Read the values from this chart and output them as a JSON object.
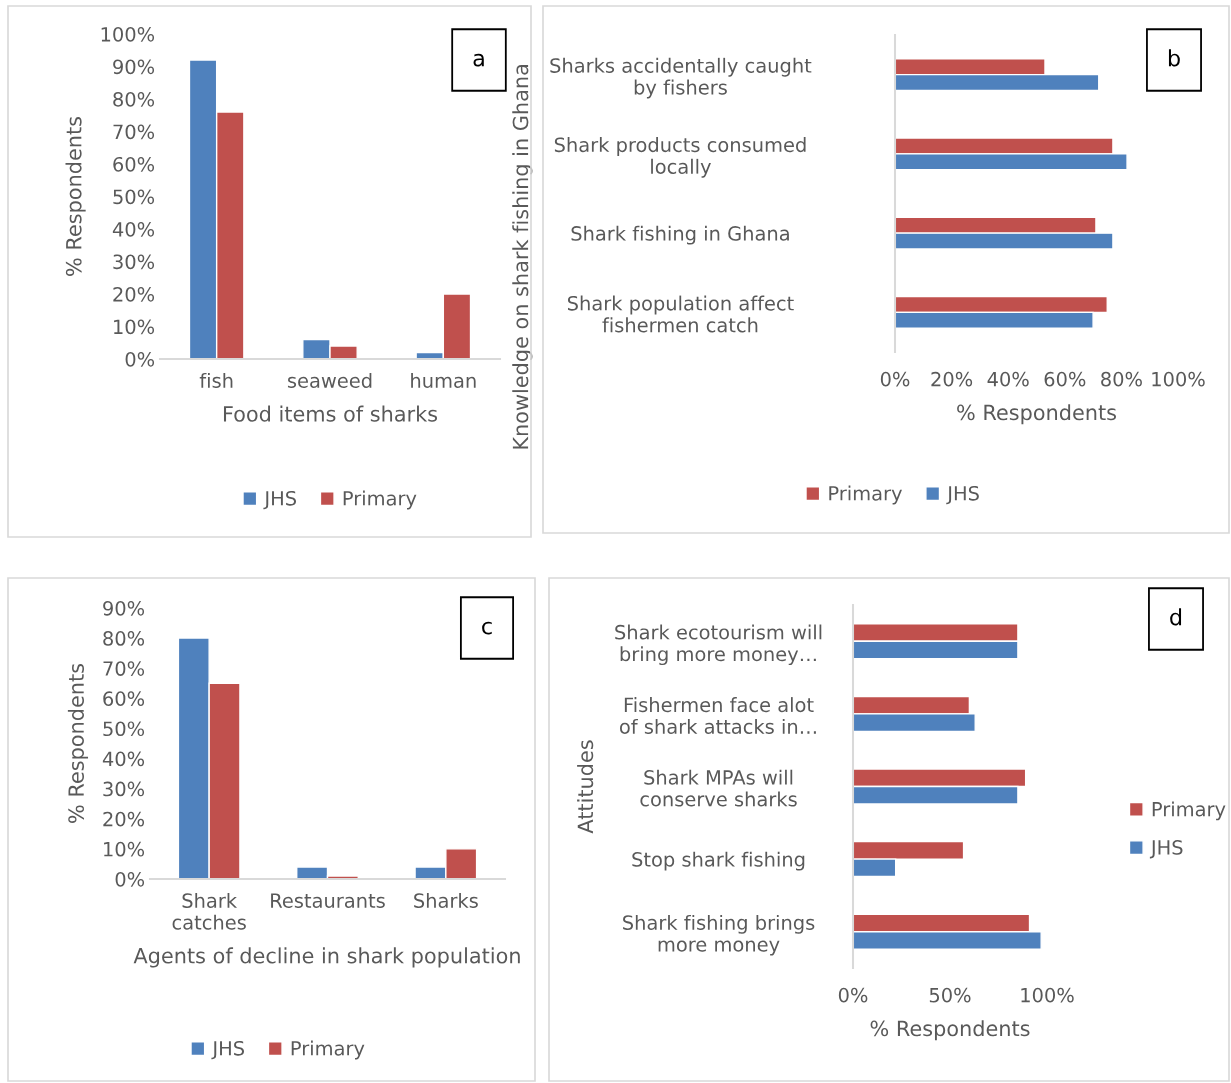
{
  "chart_data": [
    {
      "type": "bar",
      "categories": [
        "fish",
        "seaweed",
        "human"
      ],
      "xlabel": "Food items of sharks",
      "ylabel": "% Respondents",
      "ylim": [
        0,
        100
      ],
      "yticks": [
        {
          "value": 0,
          "label": "0%"
        },
        {
          "value": 10,
          "label": "10%"
        },
        {
          "value": 20,
          "label": "20%"
        },
        {
          "value": 30,
          "label": "30%"
        },
        {
          "value": 40,
          "label": "40%"
        },
        {
          "value": 50,
          "label": "50%"
        },
        {
          "value": 60,
          "label": "60%"
        },
        {
          "value": 70,
          "label": "70%"
        },
        {
          "value": 80,
          "label": "80%"
        },
        {
          "value": 90,
          "label": "90%"
        },
        {
          "value": 100,
          "label": "100%"
        }
      ],
      "annotations": [
        "a"
      ],
      "legend": "bottom",
      "grid": false,
      "series": [
        {
          "name": "JHS",
          "color": "#4f81bd",
          "values": [
            92,
            6,
            2
          ]
        },
        {
          "name": "Primary",
          "color": "#c0504d",
          "values": [
            76,
            4,
            20
          ]
        }
      ]
    },
    {
      "type": "bar",
      "orientation": "horizontal",
      "categories": [
        "Sharks accidentally caught\nby fishers",
        "Shark products consumed\nlocally",
        "Shark fishing in Ghana",
        "Shark population affect\nfishermen catch"
      ],
      "xlabel": "% Respondents",
      "ylabel": "Knowledge on shark fishing in Ghana",
      "xlim": [
        0,
        100
      ],
      "xticks": [
        {
          "value": 0,
          "label": "0%"
        },
        {
          "value": 20,
          "label": "20%"
        },
        {
          "value": 40,
          "label": "40%"
        },
        {
          "value": 60,
          "label": "60%"
        },
        {
          "value": 80,
          "label": "80%"
        },
        {
          "value": 100,
          "label": "100%"
        }
      ],
      "annotations": [
        "b"
      ],
      "legend": "bottom",
      "grid": false,
      "series": [
        {
          "name": "Primary",
          "color": "#c0504d",
          "values": [
            53,
            77,
            71,
            75
          ]
        },
        {
          "name": "JHS",
          "color": "#4f81bd",
          "values": [
            72,
            82,
            77,
            70
          ]
        }
      ]
    },
    {
      "type": "bar",
      "categories": [
        "Shark\ncatches",
        "Restaurants",
        "Sharks"
      ],
      "xlabel": "Agents of decline in shark population",
      "ylabel": "% Respondents",
      "ylim": [
        0,
        90
      ],
      "yticks": [
        {
          "value": 0,
          "label": "0%"
        },
        {
          "value": 10,
          "label": "10%"
        },
        {
          "value": 20,
          "label": "20%"
        },
        {
          "value": 30,
          "label": "30%"
        },
        {
          "value": 40,
          "label": "40%"
        },
        {
          "value": 50,
          "label": "50%"
        },
        {
          "value": 60,
          "label": "60%"
        },
        {
          "value": 70,
          "label": "70%"
        },
        {
          "value": 80,
          "label": "80%"
        },
        {
          "value": 90,
          "label": "90%"
        }
      ],
      "annotations": [
        "c"
      ],
      "legend": "bottom",
      "grid": false,
      "series": [
        {
          "name": "JHS",
          "color": "#4f81bd",
          "values": [
            80,
            4,
            4
          ]
        },
        {
          "name": "Primary",
          "color": "#c0504d",
          "values": [
            65,
            1,
            10
          ]
        }
      ]
    },
    {
      "type": "bar",
      "orientation": "horizontal",
      "categories": [
        "Shark ecotourism will\nbring more money…",
        "Fishermen face alot\nof shark attacks in…",
        "Shark MPAs will\nconserve sharks",
        "Stop shark fishing",
        "Shark fishing brings\nmore money"
      ],
      "xlabel": "% Respondents",
      "ylabel": "Attitudes",
      "xlim": [
        0,
        100
      ],
      "xticks": [
        {
          "value": 0,
          "label": "0%"
        },
        {
          "value": 50,
          "label": "50%"
        },
        {
          "value": 100,
          "label": "100%"
        }
      ],
      "annotations": [
        "d"
      ],
      "legend": "right",
      "grid": false,
      "series": [
        {
          "name": "Primary",
          "color": "#c0504d",
          "values": [
            85,
            60,
            89,
            57,
            91
          ]
        },
        {
          "name": "JHS",
          "color": "#4f81bd",
          "values": [
            85,
            63,
            85,
            22,
            97
          ]
        }
      ]
    }
  ]
}
